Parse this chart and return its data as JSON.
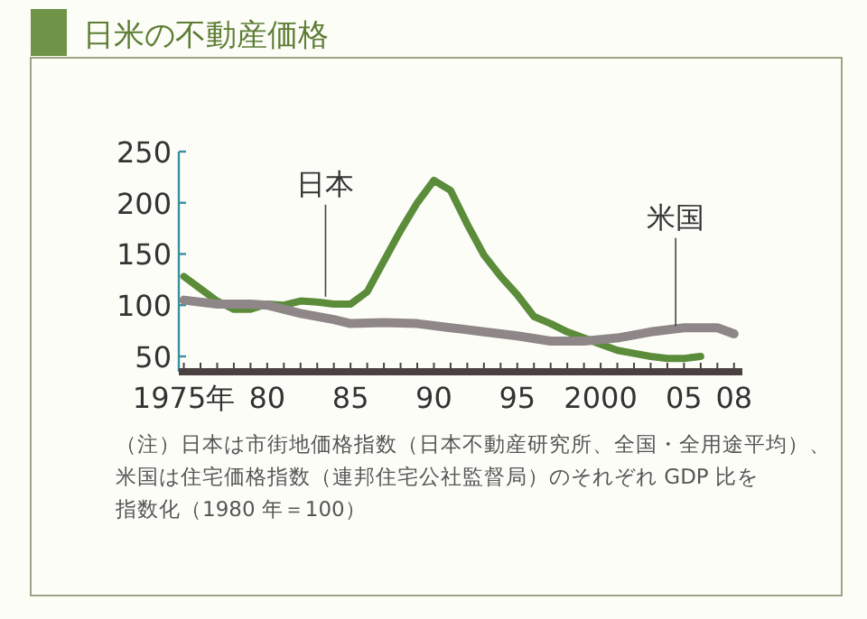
{
  "chart_data": {
    "type": "line",
    "title": "日米の不動産価格",
    "x": [
      1975,
      1976,
      1977,
      1978,
      1979,
      1980,
      1981,
      1982,
      1983,
      1984,
      1985,
      1986,
      1987,
      1988,
      1989,
      1990,
      1991,
      1992,
      1993,
      1994,
      1995,
      1996,
      1997,
      1998,
      1999,
      2000,
      2001,
      2002,
      2003,
      2004,
      2005,
      2006
    ],
    "series": [
      {
        "name": "日本",
        "color": "#5b8c3a",
        "values": [
          128,
          116,
          104,
          96,
          96,
          101,
          100,
          104,
          103,
          101,
          101,
          113,
          143,
          173,
          200,
          222,
          212,
          179,
          149,
          128,
          110,
          89,
          82,
          74,
          68,
          62,
          56,
          53,
          50,
          48,
          48,
          50
        ]
      },
      {
        "name": "米国",
        "color": "#8f8787",
        "x": [
          1975,
          1977,
          1979,
          1980,
          1982,
          1984,
          1985,
          1987,
          1989,
          1991,
          1993,
          1995,
          1997,
          1999,
          2001,
          2003,
          2005,
          2007,
          2008
        ],
        "values": [
          105,
          101,
          101,
          100,
          92,
          86,
          82,
          83,
          82,
          78,
          74,
          70,
          65,
          65,
          68,
          74,
          78,
          78,
          72
        ]
      }
    ],
    "xlim": [
      1974.7,
      2008.5
    ],
    "ylim": [
      35,
      250
    ],
    "xticks": [
      {
        "value": 1975,
        "label": "1975年"
      },
      {
        "value": 1976,
        "label": null
      },
      {
        "value": 1977,
        "label": null
      },
      {
        "value": 1978,
        "label": null
      },
      {
        "value": 1979,
        "label": null
      },
      {
        "value": 1980,
        "label": "80"
      },
      {
        "value": 1981,
        "label": null
      },
      {
        "value": 1982,
        "label": null
      },
      {
        "value": 1983,
        "label": null
      },
      {
        "value": 1984,
        "label": null
      },
      {
        "value": 1985,
        "label": "85"
      },
      {
        "value": 1986,
        "label": null
      },
      {
        "value": 1987,
        "label": null
      },
      {
        "value": 1988,
        "label": null
      },
      {
        "value": 1989,
        "label": null
      },
      {
        "value": 1990,
        "label": "90"
      },
      {
        "value": 1991,
        "label": null
      },
      {
        "value": 1992,
        "label": null
      },
      {
        "value": 1993,
        "label": null
      },
      {
        "value": 1994,
        "label": null
      },
      {
        "value": 1995,
        "label": "95"
      },
      {
        "value": 1996,
        "label": null
      },
      {
        "value": 1997,
        "label": null
      },
      {
        "value": 1998,
        "label": null
      },
      {
        "value": 1999,
        "label": null
      },
      {
        "value": 2000,
        "label": "2000"
      },
      {
        "value": 2001,
        "label": null
      },
      {
        "value": 2002,
        "label": null
      },
      {
        "value": 2003,
        "label": null
      },
      {
        "value": 2004,
        "label": null
      },
      {
        "value": 2005,
        "label": "05"
      },
      {
        "value": 2006,
        "label": null
      },
      {
        "value": 2007,
        "label": null
      },
      {
        "value": 2008,
        "label": "08"
      }
    ],
    "yticks": [
      50,
      100,
      150,
      200,
      250
    ],
    "annotations": [
      "（注）日本は市街地価格指数（日本不動産研究所、全国・全用途平均）、",
      "米国は住宅価格指数（連邦住宅公社監督局）のそれぞれ GDP 比を",
      "指数化（1980 年＝100）"
    ]
  }
}
